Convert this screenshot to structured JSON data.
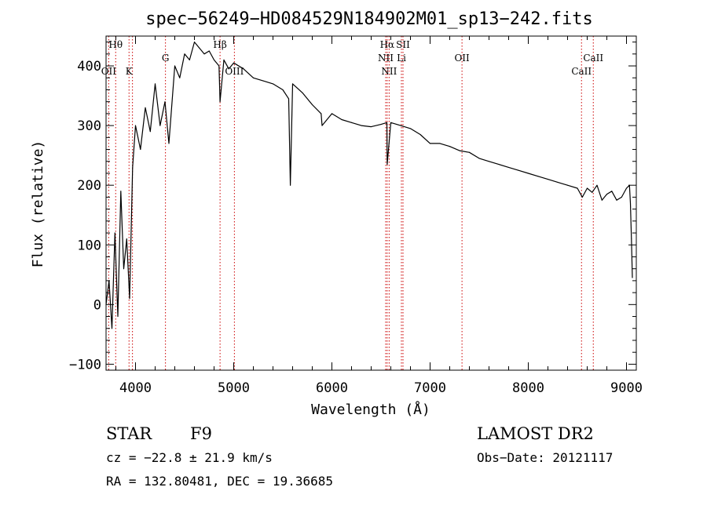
{
  "chart_data": {
    "type": "line",
    "title": "spec−56249−HD084529N184902M01_sp13−242.fits",
    "xlabel": "Wavelength (Å)",
    "ylabel": "Flux (relative)",
    "xlim": [
      3700,
      9100
    ],
    "ylim": [
      -110,
      450
    ],
    "x_ticks": [
      4000,
      5000,
      6000,
      7000,
      8000,
      9000
    ],
    "x_tick_labels": [
      "4000",
      "5000",
      "6000",
      "7000",
      "8000",
      "9000"
    ],
    "y_ticks": [
      -100,
      0,
      100,
      200,
      300,
      400
    ],
    "y_tick_labels": [
      "−100",
      "0",
      "100",
      "200",
      "300",
      "400"
    ],
    "line_color": "#000000",
    "marker_color": "#cc0000",
    "series": [
      {
        "x": [
          3700,
          3730,
          3760,
          3790,
          3820,
          3850,
          3880,
          3910,
          3940,
          3970,
          4000,
          4050,
          4100,
          4150,
          4200,
          4250,
          4300,
          4340,
          4400,
          4450,
          4500,
          4550,
          4600,
          4650,
          4700,
          4750,
          4800,
          4850,
          4861,
          4900,
          4950,
          5000,
          5100,
          5200,
          5300,
          5400,
          5500,
          5560,
          5577,
          5600,
          5700,
          5800,
          5890,
          5900,
          6000,
          6100,
          6200,
          6300,
          6400,
          6500,
          6560,
          6563,
          6600,
          6700,
          6800,
          6900,
          7000,
          7100,
          7200,
          7300,
          7400,
          7500,
          7600,
          7700,
          7800,
          7900,
          8000,
          8100,
          8200,
          8300,
          8400,
          8500,
          8550,
          8600,
          8650,
          8700,
          8750,
          8800,
          8850,
          8900,
          8950,
          9000,
          9030,
          9040,
          9050,
          9060
        ],
        "y": [
          0,
          40,
          -40,
          120,
          -20,
          190,
          60,
          110,
          10,
          230,
          300,
          260,
          330,
          290,
          370,
          300,
          340,
          270,
          400,
          380,
          420,
          410,
          440,
          430,
          420,
          425,
          410,
          400,
          340,
          410,
          395,
          405,
          395,
          380,
          375,
          370,
          360,
          345,
          200,
          370,
          355,
          335,
          320,
          300,
          320,
          310,
          305,
          300,
          298,
          302,
          305,
          235,
          305,
          300,
          295,
          285,
          270,
          270,
          265,
          258,
          255,
          245,
          240,
          235,
          230,
          225,
          220,
          215,
          210,
          205,
          200,
          195,
          180,
          195,
          188,
          200,
          175,
          185,
          190,
          175,
          180,
          195,
          200,
          170,
          110,
          45
        ]
      }
    ],
    "line_markers": [
      {
        "label": "Hθ",
        "x": 3798,
        "row": 0
      },
      {
        "label": "OII",
        "x": 3727,
        "row": 2
      },
      {
        "label": "K",
        "x": 3934,
        "row": 2
      },
      {
        "label": "G",
        "x": 4305,
        "row": 1
      },
      {
        "label": "Hβ",
        "x": 4861,
        "row": 0
      },
      {
        "label": "OIII",
        "x": 5007,
        "row": 2
      },
      {
        "label": "Hα",
        "x": 6563,
        "row": 0
      },
      {
        "label": "SII",
        "x": 6724,
        "row": 0
      },
      {
        "label": "NII",
        "x": 6548,
        "row": 1
      },
      {
        "label": "Li",
        "x": 6708,
        "row": 1
      },
      {
        "label": "NII",
        "x": 6583,
        "row": 2
      },
      {
        "label": "OII",
        "x": 7325,
        "row": 1
      },
      {
        "label": "CaII",
        "x": 8662,
        "row": 1
      },
      {
        "label": "CaII",
        "x": 8542,
        "row": 2
      }
    ],
    "line_marker_positions": [
      3727,
      3798,
      3934,
      3969,
      4305,
      4861,
      5007,
      6548,
      6563,
      6583,
      6708,
      6724,
      7325,
      8542,
      8662
    ]
  },
  "info": {
    "object_class": "STAR",
    "subclass": "F9",
    "survey": "LAMOST DR2",
    "redshift": "cz = −22.8 ± 21.9 km/s",
    "obs_date": "Obs−Date: 20121117",
    "coords": "RA = 132.80481, DEC =  19.36685"
  }
}
